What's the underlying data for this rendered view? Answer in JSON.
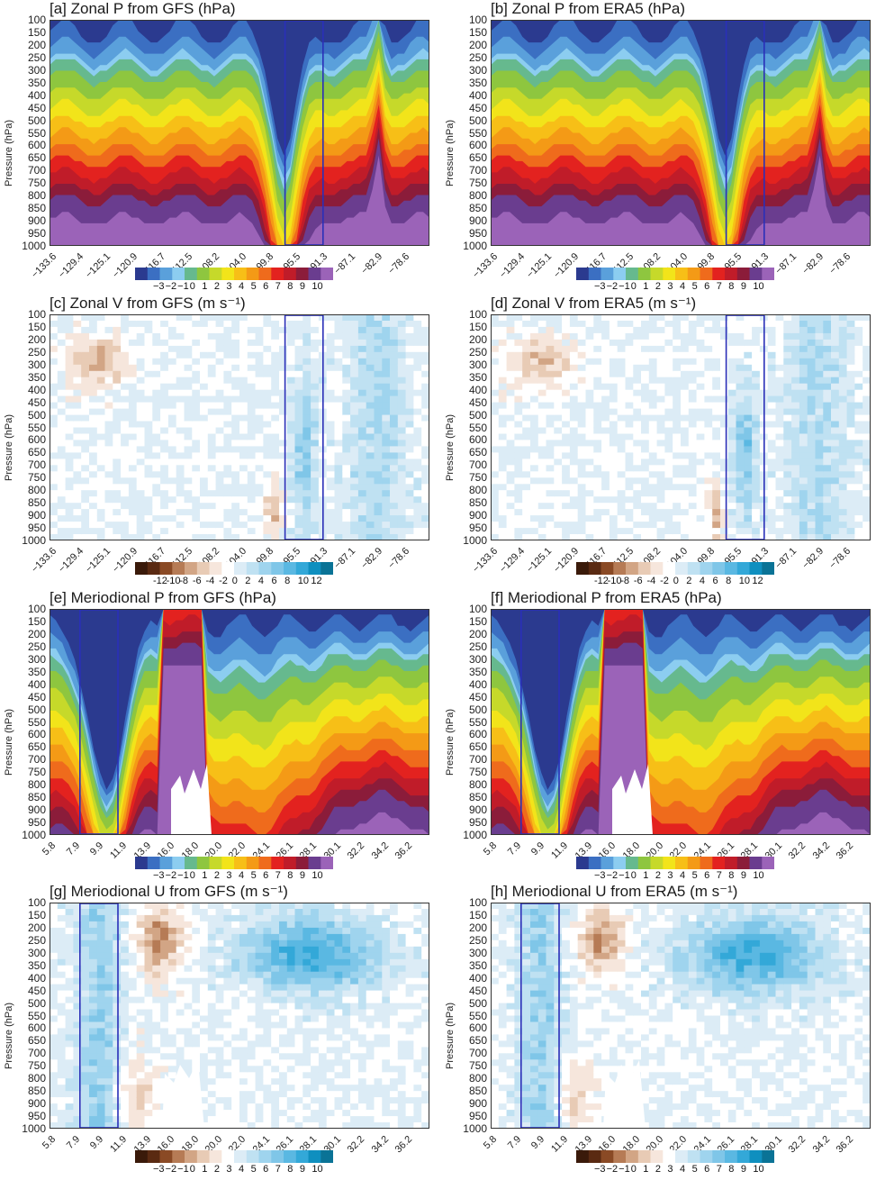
{
  "y_ticks": [
    "100",
    "150",
    "200",
    "250",
    "300",
    "350",
    "400",
    "450",
    "500",
    "550",
    "600",
    "650",
    "700",
    "750",
    "800",
    "850",
    "900",
    "950",
    "1000"
  ],
  "palettes": {
    "p": [
      "#2b3a8f",
      "#3b6fc2",
      "#5aa0db",
      "#8ccdf0",
      "#66b98e",
      "#8ec63f",
      "#c6d92a",
      "#f2e41a",
      "#f7bf17",
      "#f49a16",
      "#ef6b1c",
      "#e3221f",
      "#c01c29",
      "#8b1c3a",
      "#6a3d8f",
      "#9b63b8"
    ],
    "v": [
      "#3a1a0a",
      "#5a2a12",
      "#8a4a25",
      "#b67b55",
      "#d2a585",
      "#e8cbb5",
      "#f6e6dc",
      "#ffffff",
      "#dcecf6",
      "#bfe1f2",
      "#9fd4ee",
      "#7fc6e8",
      "#5ab8e2",
      "#33a8d8",
      "#0f8fbf",
      "#0a7396"
    ]
  },
  "panels": [
    {
      "id": "a",
      "title": "[a] Zonal P from GFS (hPa)",
      "x_ticks": [
        "−133.6",
        "−129.4",
        "−125.1",
        "−120.9",
        "−116.7",
        "−112.5",
        "−108.2",
        "−104.0",
        "−99.8",
        "−95.5",
        "−91.3",
        "−87.1",
        "−82.9",
        "−78.6"
      ],
      "colorbar_labels": [
        "−3",
        "−2",
        "−1",
        "0",
        "1",
        "2",
        "3",
        "4",
        "5",
        "6",
        "7",
        "8",
        "9",
        "10"
      ]
    },
    {
      "id": "b",
      "title": "[b] Zonal P from ERA5 (hPa)",
      "x_ticks": [
        "−133.6",
        "−129.4",
        "−125.1",
        "−120.9",
        "−116.7",
        "−112.5",
        "−108.2",
        "−104.0",
        "−99.8",
        "−95.5",
        "−91.3",
        "−87.1",
        "−82.9",
        "−78.6"
      ],
      "colorbar_labels": [
        "−3",
        "−2",
        "−1",
        "0",
        "1",
        "2",
        "3",
        "4",
        "5",
        "6",
        "7",
        "8",
        "9",
        "10"
      ]
    },
    {
      "id": "c",
      "title": "[c] Zonal V from GFS (m s⁻¹)",
      "x_ticks": [
        "−133.6",
        "−129.4",
        "−125.1",
        "−120.9",
        "−116.7",
        "−112.5",
        "−108.2",
        "−104.0",
        "−99.8",
        "−95.5",
        "−91.3",
        "−87.1",
        "−82.9",
        "−78.6"
      ],
      "colorbar_labels": [
        "-12",
        "-10",
        "-8",
        "-6",
        "-4",
        "-2",
        "0",
        "2",
        "4",
        "6",
        "8",
        "10",
        "12"
      ]
    },
    {
      "id": "d",
      "title": "[d] Zonal V from ERA5 (m s⁻¹)",
      "x_ticks": [
        "−133.6",
        "−129.4",
        "−125.1",
        "−120.9",
        "−116.7",
        "−112.5",
        "−108.2",
        "−104.0",
        "−99.8",
        "−95.5",
        "−91.3",
        "−87.1",
        "−82.9",
        "−78.6"
      ],
      "colorbar_labels": [
        "-12",
        "-10",
        "-8",
        "-6",
        "-4",
        "-2",
        "0",
        "2",
        "4",
        "6",
        "8",
        "10",
        "12"
      ]
    },
    {
      "id": "e",
      "title": "[e] Meriodional P from GFS (hPa)",
      "x_ticks": [
        "5.8",
        "7.9",
        "9.9",
        "11.9",
        "13.9",
        "16.0",
        "18.0",
        "20.0",
        "22.0",
        "24.1",
        "26.1",
        "28.1",
        "30.1",
        "32.2",
        "34.2",
        "36.2"
      ],
      "colorbar_labels": [
        "−3",
        "−2",
        "−1",
        "0",
        "1",
        "2",
        "3",
        "4",
        "5",
        "6",
        "7",
        "8",
        "9",
        "10"
      ]
    },
    {
      "id": "f",
      "title": "[f] Meriodional P from ERA5 (hPa)",
      "x_ticks": [
        "5.8",
        "7.9",
        "9.9",
        "11.9",
        "13.9",
        "16.0",
        "18.0",
        "20.0",
        "22.0",
        "24.1",
        "26.1",
        "28.1",
        "30.1",
        "32.2",
        "34.2",
        "36.2"
      ],
      "colorbar_labels": [
        "−3",
        "−2",
        "−1",
        "0",
        "1",
        "2",
        "3",
        "4",
        "5",
        "6",
        "7",
        "8",
        "9",
        "10"
      ]
    },
    {
      "id": "g",
      "title": "[g] Meriodional U from GFS (m s⁻¹)",
      "x_ticks": [
        "5.8",
        "7.9",
        "9.9",
        "11.9",
        "13.9",
        "16.0",
        "18.0",
        "20.0",
        "22.0",
        "24.1",
        "26.1",
        "28.1",
        "30.1",
        "32.2",
        "34.2",
        "36.2"
      ],
      "colorbar_labels": [
        "−3",
        "−2",
        "−1",
        "0",
        "1",
        "2",
        "3",
        "4",
        "5",
        "6",
        "7",
        "8",
        "9",
        "10"
      ]
    },
    {
      "id": "h",
      "title": "[h] Meriodional U from ERA5 (m s⁻¹)",
      "x_ticks": [
        "5.8",
        "7.9",
        "9.9",
        "11.9",
        "13.9",
        "16.0",
        "18.0",
        "20.0",
        "22.0",
        "24.1",
        "26.1",
        "28.1",
        "30.1",
        "32.2",
        "34.2",
        "36.2"
      ],
      "colorbar_labels": [
        "−3",
        "−2",
        "−1",
        "0",
        "1",
        "2",
        "3",
        "4",
        "5",
        "6",
        "7",
        "8",
        "9",
        "10"
      ]
    }
  ],
  "chart_data": [
    {
      "type": "heatmap",
      "title": "[a] Zonal P from GFS (hPa)",
      "ylabel": "Pressure (hPa)",
      "ylim": [
        1000,
        100
      ],
      "y_ticks": [
        100,
        150,
        200,
        250,
        300,
        350,
        400,
        450,
        500,
        550,
        600,
        650,
        700,
        750,
        800,
        850,
        900,
        950,
        1000
      ],
      "x_ticks": [
        -133.6,
        -129.4,
        -125.1,
        -120.9,
        -116.7,
        -112.5,
        -108.2,
        -104.0,
        -99.8,
        -95.5,
        -91.3,
        -87.1,
        -82.9,
        -78.6
      ],
      "colorbar_ticks": [
        -3,
        -2,
        -1,
        0,
        1,
        2,
        3,
        4,
        5,
        6,
        7,
        8,
        9,
        10
      ],
      "highlight_box_x": [
        -100.3,
        -95.2
      ]
    },
    {
      "type": "heatmap",
      "title": "[b] Zonal P from ERA5 (hPa)",
      "ylabel": "Pressure (hPa)",
      "ylim": [
        1000,
        100
      ],
      "y_ticks": [
        100,
        150,
        200,
        250,
        300,
        350,
        400,
        450,
        500,
        550,
        600,
        650,
        700,
        750,
        800,
        850,
        900,
        950,
        1000
      ],
      "x_ticks": [
        -133.6,
        -129.4,
        -125.1,
        -120.9,
        -116.7,
        -112.5,
        -108.2,
        -104.0,
        -99.8,
        -95.5,
        -91.3,
        -87.1,
        -82.9,
        -78.6
      ],
      "colorbar_ticks": [
        -3,
        -2,
        -1,
        0,
        1,
        2,
        3,
        4,
        5,
        6,
        7,
        8,
        9,
        10
      ],
      "highlight_box_x": [
        -100.3,
        -95.2
      ]
    },
    {
      "type": "heatmap",
      "title": "[c] Zonal V from GFS (m s⁻¹)",
      "ylabel": "Pressure (hPa)",
      "ylim": [
        1000,
        100
      ],
      "y_ticks": [
        100,
        150,
        200,
        250,
        300,
        350,
        400,
        450,
        500,
        550,
        600,
        650,
        700,
        750,
        800,
        850,
        900,
        950,
        1000
      ],
      "x_ticks": [
        -133.6,
        -129.4,
        -125.1,
        -120.9,
        -116.7,
        -112.5,
        -108.2,
        -104.0,
        -99.8,
        -95.5,
        -91.3,
        -87.1,
        -82.9,
        -78.6
      ],
      "colorbar_ticks": [
        -12,
        -10,
        -8,
        -6,
        -4,
        -2,
        0,
        2,
        4,
        6,
        8,
        10,
        12
      ],
      "highlight_box_x": [
        -100.3,
        -95.2
      ]
    },
    {
      "type": "heatmap",
      "title": "[d] Zonal V from ERA5 (m s⁻¹)",
      "ylabel": "Pressure (hPa)",
      "ylim": [
        1000,
        100
      ],
      "y_ticks": [
        100,
        150,
        200,
        250,
        300,
        350,
        400,
        450,
        500,
        550,
        600,
        650,
        700,
        750,
        800,
        850,
        900,
        950,
        1000
      ],
      "x_ticks": [
        -133.6,
        -129.4,
        -125.1,
        -120.9,
        -116.7,
        -112.5,
        -108.2,
        -104.0,
        -99.8,
        -95.5,
        -91.3,
        -87.1,
        -82.9,
        -78.6
      ],
      "colorbar_ticks": [
        -12,
        -10,
        -8,
        -6,
        -4,
        -2,
        0,
        2,
        4,
        6,
        8,
        10,
        12
      ],
      "highlight_box_x": [
        -100.3,
        -95.2
      ]
    },
    {
      "type": "heatmap",
      "title": "[e] Meriodional P from GFS (hPa)",
      "ylabel": "Pressure (hPa)",
      "ylim": [
        1000,
        100
      ],
      "y_ticks": [
        100,
        150,
        200,
        250,
        300,
        350,
        400,
        450,
        500,
        550,
        600,
        650,
        700,
        750,
        800,
        850,
        900,
        950,
        1000
      ],
      "x_ticks": [
        5.8,
        7.9,
        9.9,
        11.9,
        13.9,
        16.0,
        18.0,
        20.0,
        22.0,
        24.1,
        26.1,
        28.1,
        30.1,
        32.2,
        34.2,
        36.2
      ],
      "colorbar_ticks": [
        -3,
        -2,
        -1,
        0,
        1,
        2,
        3,
        4,
        5,
        6,
        7,
        8,
        9,
        10
      ],
      "highlight_box_x": [
        9.5,
        14.0
      ]
    },
    {
      "type": "heatmap",
      "title": "[f] Meriodional P from ERA5 (hPa)",
      "ylabel": "Pressure (hPa)",
      "ylim": [
        1000,
        100
      ],
      "y_ticks": [
        100,
        150,
        200,
        250,
        300,
        350,
        400,
        450,
        500,
        550,
        600,
        650,
        700,
        750,
        800,
        850,
        900,
        950,
        1000
      ],
      "x_ticks": [
        5.8,
        7.9,
        9.9,
        11.9,
        13.9,
        16.0,
        18.0,
        20.0,
        22.0,
        24.1,
        26.1,
        28.1,
        30.1,
        32.2,
        34.2,
        36.2
      ],
      "colorbar_ticks": [
        -3,
        -2,
        -1,
        0,
        1,
        2,
        3,
        4,
        5,
        6,
        7,
        8,
        9,
        10
      ],
      "highlight_box_x": [
        9.5,
        14.0
      ]
    },
    {
      "type": "heatmap",
      "title": "[g] Meriodional U from GFS (m s⁻¹)",
      "ylabel": "Pressure (hPa)",
      "ylim": [
        1000,
        100
      ],
      "y_ticks": [
        100,
        150,
        200,
        250,
        300,
        350,
        400,
        450,
        500,
        550,
        600,
        650,
        700,
        750,
        800,
        850,
        900,
        950,
        1000
      ],
      "x_ticks": [
        5.8,
        7.9,
        9.9,
        11.9,
        13.9,
        16.0,
        18.0,
        20.0,
        22.0,
        24.1,
        26.1,
        28.1,
        30.1,
        32.2,
        34.2,
        36.2
      ],
      "colorbar_ticks": [
        -3,
        -2,
        -1,
        0,
        1,
        2,
        3,
        4,
        5,
        6,
        7,
        8,
        9,
        10
      ],
      "highlight_box_x": [
        9.5,
        14.0
      ]
    },
    {
      "type": "heatmap",
      "title": "[h] Meriodional U from ERA5 (m s⁻¹)",
      "ylabel": "Pressure (hPa)",
      "ylim": [
        1000,
        100
      ],
      "y_ticks": [
        100,
        150,
        200,
        250,
        300,
        350,
        400,
        450,
        500,
        550,
        600,
        650,
        700,
        750,
        800,
        850,
        900,
        950,
        1000
      ],
      "x_ticks": [
        5.8,
        7.9,
        9.9,
        11.9,
        13.9,
        16.0,
        18.0,
        20.0,
        22.0,
        24.1,
        26.1,
        28.1,
        30.1,
        32.2,
        34.2,
        36.2
      ],
      "colorbar_ticks": [
        -3,
        -2,
        -1,
        0,
        1,
        2,
        3,
        4,
        5,
        6,
        7,
        8,
        9,
        10
      ],
      "highlight_box_x": [
        9.5,
        14.0
      ]
    }
  ],
  "y_label": "Pressure (hPa)"
}
